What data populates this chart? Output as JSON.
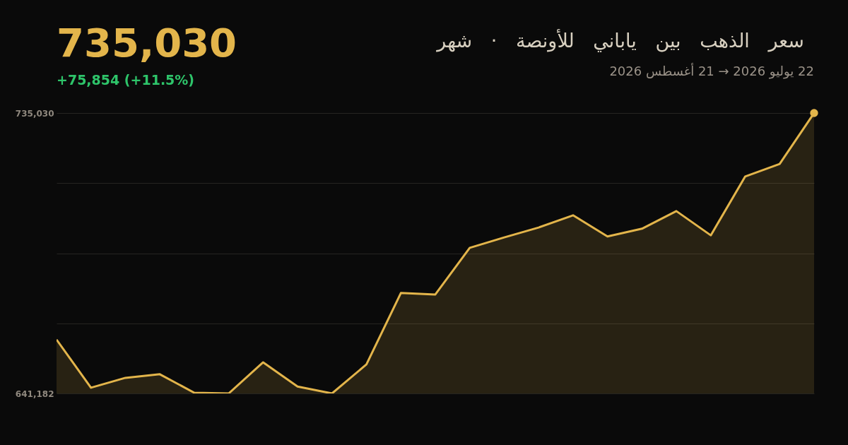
{
  "chart_data": {
    "type": "area",
    "title": "سعر الذهب بين ياباني للأونصة · شهر",
    "subtitle": "22 يوليو 2026 → 21 أغسطس 2026",
    "annotations": [
      "735,030",
      "+75,854 (+11.5%)"
    ],
    "categories": [
      null,
      null,
      null,
      null,
      null,
      null,
      null,
      null,
      null,
      null,
      null,
      null,
      null,
      null,
      null,
      null,
      null,
      null,
      null,
      null,
      null,
      null,
      null
    ],
    "values": [
      659200,
      643100,
      646400,
      647600,
      641400,
      641182,
      651600,
      643500,
      641182,
      650900,
      674800,
      674300,
      689900,
      693400,
      696700,
      700800,
      693700,
      696300,
      702200,
      694100,
      713800,
      718000,
      735030
    ],
    "color": "#e3b54b",
    "ylim": [
      641182,
      735030
    ],
    "yticks": [
      {
        "value": 641182,
        "label": "641,182"
      },
      {
        "value": 664645,
        "label": null
      },
      {
        "value": 688106,
        "label": null
      },
      {
        "value": 711568,
        "label": null
      },
      {
        "value": 735030,
        "label": "735,030"
      }
    ],
    "grid": "y"
  }
}
